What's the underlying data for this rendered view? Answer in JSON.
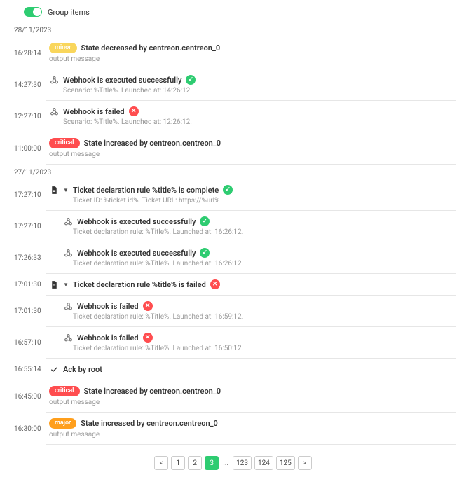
{
  "colors": {
    "minor": "#f9d65c",
    "critical": "#ff4d4f",
    "major": "#ff9f1c",
    "success": "#2ecc71",
    "fail": "#ff4d4f",
    "icon_gray": "#777",
    "icon_dark": "#333"
  },
  "toggle": {
    "label": "Group items"
  },
  "groups": [
    {
      "date": "28/11/2023",
      "entries": [
        {
          "time": "16:28:14",
          "badge": {
            "text": "minor",
            "color": "minor"
          },
          "title": "State decreased by centreon.centreon_0",
          "sub": "output message",
          "sub_indent": 0
        },
        {
          "time": "14:27:30",
          "icon": "webhook",
          "title": "Webhook is executed successfully",
          "status": "success",
          "sub": "Scenario: %Title%. Launched at: 14:26:12.",
          "sub_indent": 1
        },
        {
          "time": "12:27:10",
          "icon": "webhook",
          "title": "Webhook is failed",
          "status": "fail",
          "sub": "Scenario: %Title%. Launched at: 12:26:12.",
          "sub_indent": 1
        },
        {
          "time": "11:00:00",
          "badge": {
            "text": "critical",
            "color": "critical"
          },
          "title": "State increased by centreon.centreon_0",
          "sub": "output message",
          "sub_indent": 0
        }
      ]
    },
    {
      "date": "27/11/2023",
      "entries": [
        {
          "time": "17:27:10",
          "icon": "doc",
          "collapsible": true,
          "title": "Ticket declaration rule %title% is complete",
          "status": "success",
          "sub": "Ticket ID: %ticket id%. Ticket URL: https://%url%",
          "sub_indent": 2
        },
        {
          "time": "17:27:10",
          "indent_first": true,
          "icon": "webhook",
          "title": "Webhook is executed successfully",
          "status": "success",
          "sub": "Ticket declaration rule: %Title%. Launched at: 16:26:12.",
          "sub_indent": 2
        },
        {
          "time": "17:26:33",
          "indent_first": true,
          "icon": "webhook",
          "title": "Webhook is executed successfully",
          "status": "success",
          "sub": "Ticket declaration rule: %Title%. Launched at: 16:26:12.",
          "sub_indent": 2
        },
        {
          "time": "17:01:30",
          "icon": "doc",
          "collapsible": true,
          "title": "Ticket declaration rule %title% is failed",
          "status": "fail",
          "sub_indent": 0
        },
        {
          "time": "17:01:30",
          "indent_first": true,
          "icon": "webhook",
          "title": "Webhook is failed",
          "status": "fail",
          "sub": "Ticket declaration rule: %Title%. Launched at: 16:59:12.",
          "sub_indent": 2
        },
        {
          "time": "16:57:10",
          "indent_first": true,
          "icon": "webhook",
          "title": "Webhook is failed",
          "status": "fail",
          "sub": "Ticket declaration rule: %Title%. Launched at: 16:50:12.",
          "sub_indent": 2
        },
        {
          "time": "16:55:14",
          "icon": "check",
          "title": "Ack by root"
        },
        {
          "time": "16:45:00",
          "badge": {
            "text": "critical",
            "color": "critical"
          },
          "title": "State increased by centreon.centreon_0",
          "sub": "output message",
          "sub_indent": 0
        },
        {
          "time": "16:30:00",
          "badge": {
            "text": "major",
            "color": "major"
          },
          "title": "State increased by centreon.centreon_0",
          "sub": "output message",
          "sub_indent": 0
        }
      ]
    }
  ],
  "pagination": {
    "prev": "<",
    "next": ">",
    "pages_left": [
      "1",
      "2",
      "3"
    ],
    "active": "3",
    "ellipsis": "...",
    "pages_right": [
      "123",
      "124",
      "125"
    ]
  }
}
